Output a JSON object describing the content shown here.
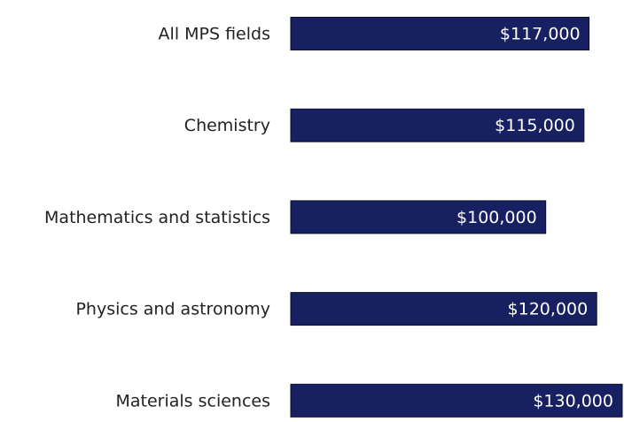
{
  "chart_data": {
    "type": "bar",
    "orientation": "horizontal",
    "categories": [
      "All MPS fields",
      "Chemistry",
      "Mathematics and statistics",
      "Physics and astronomy",
      "Materials sciences"
    ],
    "values": [
      117000,
      115000,
      100000,
      120000,
      130000
    ],
    "value_labels": [
      "$117,000",
      "$115,000",
      "$100,000",
      "$120,000",
      "$130,000"
    ],
    "color": "#172060"
  }
}
